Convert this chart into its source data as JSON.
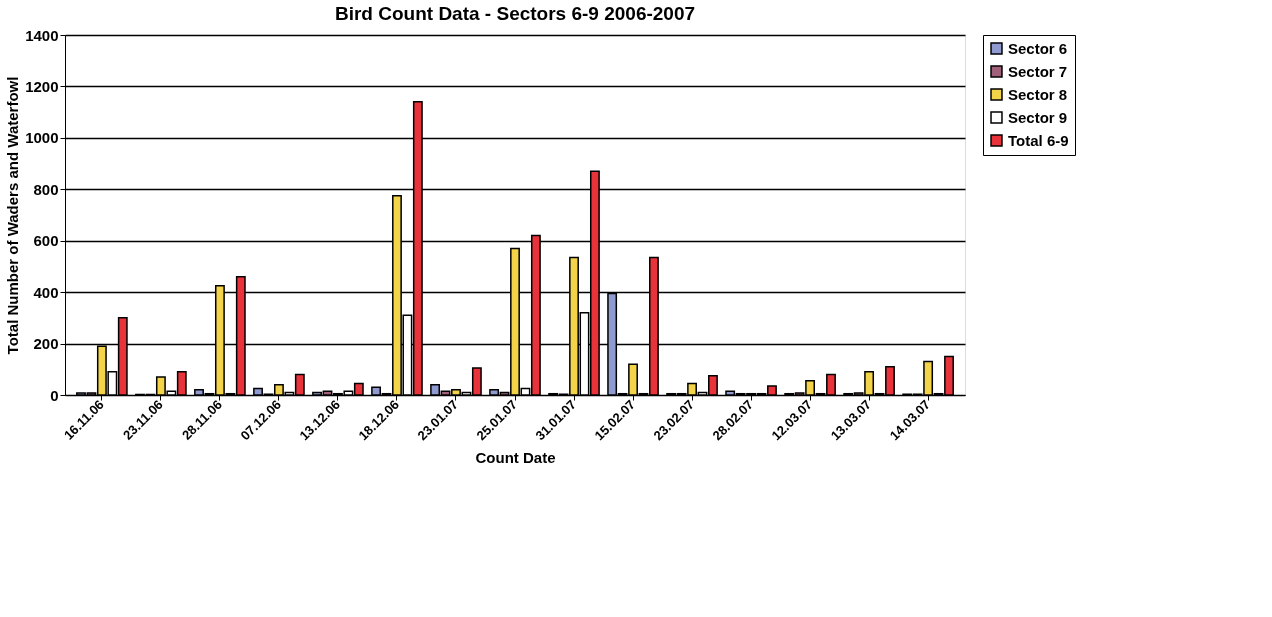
{
  "chart_data": {
    "type": "bar",
    "title": "Bird Count Data - Sectors 6-9 2006-2007",
    "xlabel": "Count Date",
    "ylabel": "Total Number of Waders and Waterfowl",
    "categories": [
      "16.11.06",
      "23.11.06",
      "28.11.06",
      "07.12.06",
      "13.12.06",
      "18.12.06",
      "23.01.07",
      "25.01.07",
      "31.01.07",
      "15.02.07",
      "23.02.07",
      "28.02.07",
      "12.03.07",
      "13.03.07",
      "14.03.07"
    ],
    "series": [
      {
        "name": "Sector 6",
        "color": "#8e9ad0",
        "values": [
          8,
          2,
          20,
          25,
          10,
          30,
          40,
          20,
          5,
          395,
          5,
          15,
          5,
          5,
          3
        ]
      },
      {
        "name": "Sector 7",
        "color": "#a0607a",
        "values": [
          8,
          2,
          5,
          3,
          15,
          5,
          15,
          10,
          3,
          5,
          5,
          5,
          8,
          8,
          3
        ]
      },
      {
        "name": "Sector 8",
        "color": "#f2d34a",
        "values": [
          190,
          70,
          425,
          40,
          5,
          775,
          20,
          570,
          535,
          120,
          45,
          5,
          55,
          90,
          130
        ]
      },
      {
        "name": "Sector 9",
        "color": "#ffffff",
        "values": [
          90,
          15,
          5,
          10,
          15,
          310,
          10,
          25,
          320,
          5,
          10,
          5,
          5,
          5,
          5
        ]
      },
      {
        "name": "Total 6-9",
        "color": "#e8333a",
        "values": [
          300,
          90,
          460,
          80,
          45,
          1140,
          105,
          620,
          870,
          535,
          75,
          35,
          80,
          110,
          150
        ]
      }
    ],
    "ylim": [
      0,
      1400
    ],
    "yticks": [
      0,
      200,
      400,
      600,
      800,
      1000,
      1200,
      1400
    ],
    "grid": "y",
    "legend": "right"
  }
}
